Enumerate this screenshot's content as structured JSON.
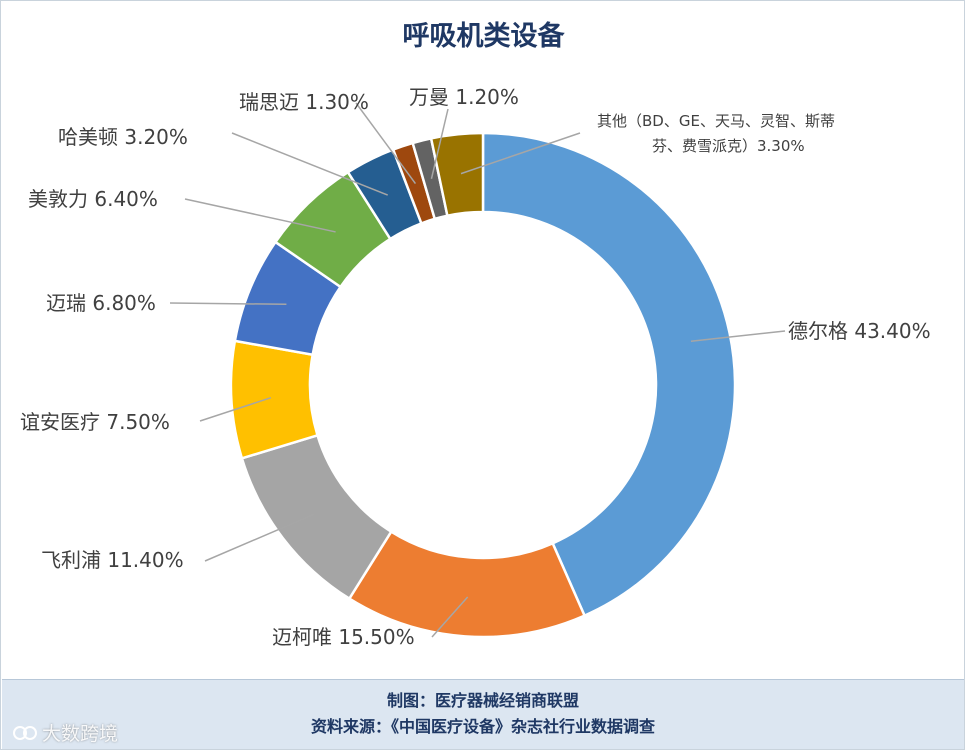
{
  "chart_data": {
    "type": "pie",
    "title": "呼吸机类设备",
    "donut": true,
    "slices": [
      {
        "name": "德尔格",
        "value": 43.4,
        "label": "德尔格 43.40%",
        "color": "#5b9bd5"
      },
      {
        "name": "迈柯唯",
        "value": 15.5,
        "label": "迈柯唯 15.50%",
        "color": "#ed7d31"
      },
      {
        "name": "飞利浦",
        "value": 11.4,
        "label": "飞利浦 11.40%",
        "color": "#a5a5a5"
      },
      {
        "name": "谊安医疗",
        "value": 7.5,
        "label": "谊安医疗 7.50%",
        "color": "#ffc000"
      },
      {
        "name": "迈瑞",
        "value": 6.8,
        "label": "迈瑞 6.80%",
        "color": "#4472c4"
      },
      {
        "name": "美敦力",
        "value": 6.4,
        "label": "美敦力 6.40%",
        "color": "#70ad47"
      },
      {
        "name": "哈美顿",
        "value": 3.2,
        "label": "哈美顿 3.20%",
        "color": "#255e91"
      },
      {
        "name": "瑞思迈",
        "value": 1.3,
        "label": "瑞思迈 1.30%",
        "color": "#9e480e"
      },
      {
        "name": "万曼",
        "value": 1.2,
        "label": "万曼 1.20%",
        "color": "#636363"
      },
      {
        "name": "其他",
        "value": 3.3,
        "label_line1": "其他（BD、GE、天马、灵智、斯蒂",
        "label_line2": "芬、费雪派克）3.30%",
        "color": "#997300"
      }
    ]
  },
  "footer": {
    "line1": "制图：医疗器械经销商联盟",
    "line2": "资料来源：《中国医疗设备》杂志社行业数据调查"
  },
  "watermark": "大数跨境"
}
